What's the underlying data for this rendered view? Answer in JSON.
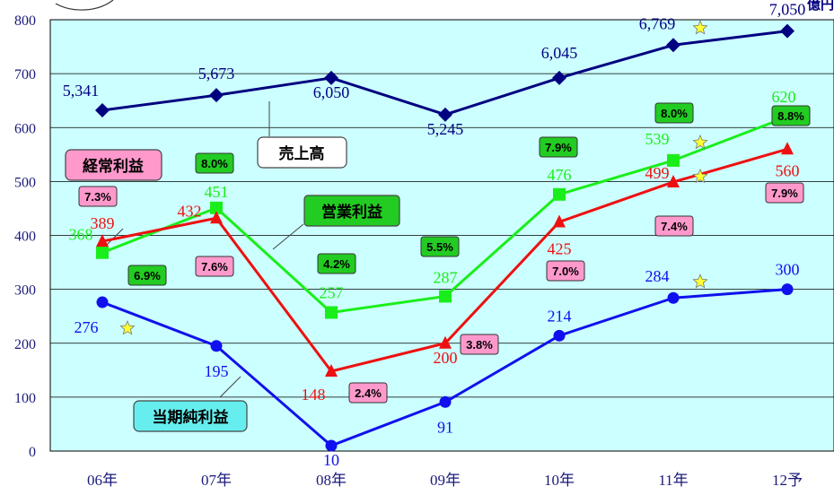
{
  "unit_label": "億円",
  "colors": {
    "plot_bg": "#ccffff",
    "sales": "#000080",
    "operating": "#1aee1a",
    "ordinary": "#ee1010",
    "net": "#1010ee",
    "pct_green_bg": "#22cc22",
    "pct_pink_bg": "#ff99cc",
    "star": "#ffff33"
  },
  "chart_data": {
    "type": "line",
    "categories": [
      "06年",
      "07年",
      "08年",
      "09年",
      "10年",
      "11年",
      "12予"
    ],
    "ylim": [
      0,
      800
    ],
    "yticks": [
      "0",
      "100",
      "200",
      "300",
      "400",
      "500",
      "600",
      "700",
      "800"
    ],
    "grid": true,
    "series": [
      {
        "key": "sales",
        "name": "売上高",
        "plot_values": [
          632,
          660,
          692,
          624,
          692,
          753,
          779
        ],
        "labels": [
          "5,341",
          "5,673",
          "6,050",
          "5,245",
          "6,045",
          "6,769",
          "7,050"
        ],
        "stars": [
          false,
          false,
          false,
          false,
          false,
          true,
          false
        ],
        "marker": "diamond"
      },
      {
        "key": "operating",
        "name": "営業利益",
        "values": [
          368,
          451,
          257,
          287,
          476,
          539,
          620
        ],
        "labels": [
          "368",
          "451",
          "257",
          "287",
          "476",
          "539",
          "620"
        ],
        "margins": [
          "6.9%",
          "8.0%",
          "4.2%",
          "5.5%",
          "7.9%",
          "8.0%",
          "8.8%"
        ],
        "stars": [
          false,
          false,
          false,
          false,
          false,
          true,
          false
        ],
        "marker": "square"
      },
      {
        "key": "ordinary",
        "name": "経常利益",
        "values": [
          389,
          432,
          148,
          200,
          425,
          499,
          560
        ],
        "labels": [
          "389",
          "432",
          "148",
          "200",
          "425",
          "499",
          "560"
        ],
        "margins": [
          "7.3%",
          "7.6%",
          "2.4%",
          "3.8%",
          "7.0%",
          "7.4%",
          "7.9%"
        ],
        "stars": [
          false,
          false,
          false,
          false,
          false,
          true,
          false
        ],
        "marker": "triangle"
      },
      {
        "key": "net",
        "name": "当期純利益",
        "values": [
          276,
          195,
          10,
          91,
          214,
          284,
          300
        ],
        "labels": [
          "276",
          "195",
          "10",
          "91",
          "214",
          "284",
          "300"
        ],
        "stars": [
          true,
          false,
          false,
          false,
          false,
          true,
          false
        ],
        "marker": "circle"
      }
    ]
  }
}
